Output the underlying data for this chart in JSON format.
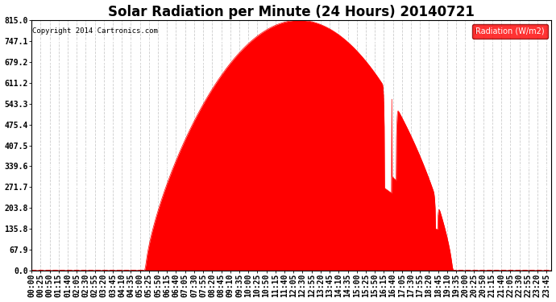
{
  "title": "Solar Radiation per Minute (24 Hours) 20140721",
  "copyright_text": "Copyright 2014 Cartronics.com",
  "legend_label": "Radiation (W/m2)",
  "yticks": [
    0.0,
    67.9,
    135.8,
    203.8,
    271.7,
    339.6,
    407.5,
    475.4,
    543.3,
    611.2,
    679.2,
    747.1,
    815.0
  ],
  "ymax": 815.0,
  "ymin": 0.0,
  "fill_color": "#FF0000",
  "bg_color": "#FFFFFF",
  "dashed_zero_color": "#FF0000",
  "title_fontsize": 12,
  "tick_fontsize": 7,
  "sunrise_minutes": 315,
  "sunset_minutes": 1165,
  "peak_minutes": 750,
  "peak_value": 815.0,
  "xtick_step": 25
}
